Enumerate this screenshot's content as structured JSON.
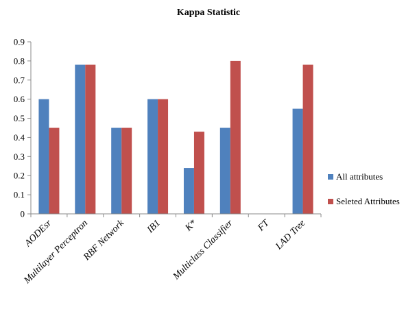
{
  "chart_data": {
    "type": "bar",
    "title": "Kappa Statistic",
    "xlabel": "",
    "ylabel": "",
    "ylim": [
      0,
      0.9
    ],
    "yticks": [
      "0",
      "0.1",
      "0.2",
      "0.3",
      "0.4",
      "0.5",
      "0.6",
      "0.7",
      "0.8",
      "0.9"
    ],
    "grid": false,
    "legend_position": "right",
    "categories": [
      "AODEsr",
      "Multilayer Perceptron",
      "RBF Network",
      "IB1",
      "K*",
      "Multiclass Classifier",
      "FT",
      "LAD Tree"
    ],
    "series": [
      {
        "name": "All attributes",
        "color": "#4f81bd",
        "values": [
          0.6,
          0.78,
          0.45,
          0.6,
          0.24,
          0.45,
          0,
          0.55
        ]
      },
      {
        "name": "Seleted Attributes",
        "color": "#c0504d",
        "values": [
          0.45,
          0.78,
          0.45,
          0.6,
          0.43,
          0.8,
          0,
          0.78
        ]
      }
    ]
  }
}
